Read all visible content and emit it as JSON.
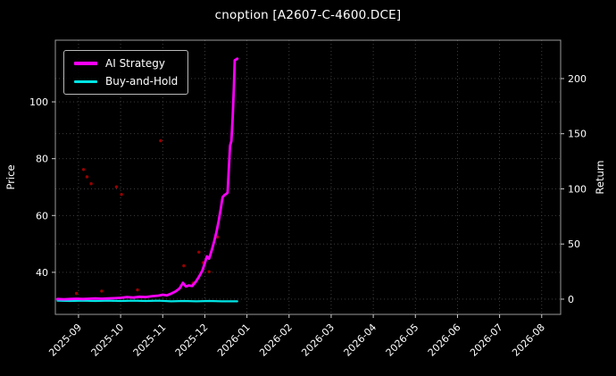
{
  "colors": {
    "background": "#000000",
    "text": "#ffffff",
    "tick": "#cccccc",
    "grid": "#454545",
    "spine": "#9a9a9a",
    "ai_strategy": "#ff00ff",
    "buy_and_hold": "#00e5e5",
    "signal_dots": "#990000"
  },
  "chart_data": {
    "type": "line",
    "title": "cnoption [A2607-C-4600.DCE]",
    "ylabel_left": "Price",
    "ylabel_right": "Return",
    "legend": [
      "AI Strategy",
      "Buy-and-Hold"
    ],
    "legend_position": "upper-left",
    "grid": true,
    "x_units": "months-since-2025-08 (1 = 2025-09)",
    "xlim": [
      0.45,
      12.45
    ],
    "x_tick_positions": [
      1,
      2,
      3,
      4,
      5,
      6,
      7,
      8,
      9,
      10,
      11,
      12
    ],
    "x_tick_labels": [
      "2025-09",
      "2025-10",
      "2025-11",
      "2025-12",
      "2026-01",
      "2026-02",
      "2026-03",
      "2026-04",
      "2026-05",
      "2026-06",
      "2026-07",
      "2026-08"
    ],
    "ylim_left": [
      25.2,
      121.7
    ],
    "yticks_left": [
      40,
      60,
      80,
      100
    ],
    "ylim_right": [
      -13.8,
      234.8
    ],
    "yticks_right": [
      0,
      50,
      100,
      150,
      200
    ],
    "series": [
      {
        "id": "ai-strategy",
        "name": "AI Strategy",
        "type": "line",
        "axis": "left",
        "color_key": "ai_strategy",
        "width": 2.8,
        "points": [
          [
            0.5,
            30.6
          ],
          [
            0.65,
            30.5
          ],
          [
            0.8,
            30.6
          ],
          [
            0.95,
            30.7
          ],
          [
            1.1,
            30.6
          ],
          [
            1.25,
            30.7
          ],
          [
            1.4,
            30.8
          ],
          [
            1.55,
            30.7
          ],
          [
            1.7,
            30.8
          ],
          [
            1.85,
            30.9
          ],
          [
            2.0,
            31.0
          ],
          [
            2.15,
            31.3
          ],
          [
            2.3,
            31.1
          ],
          [
            2.45,
            31.4
          ],
          [
            2.6,
            31.3
          ],
          [
            2.75,
            31.6
          ],
          [
            2.9,
            31.8
          ],
          [
            3.0,
            32.1
          ],
          [
            3.1,
            31.9
          ],
          [
            3.2,
            32.5
          ],
          [
            3.3,
            33.2
          ],
          [
            3.4,
            34.3
          ],
          [
            3.48,
            36.3
          ],
          [
            3.55,
            35.0
          ],
          [
            3.62,
            35.4
          ],
          [
            3.7,
            35.2
          ],
          [
            3.78,
            36.6
          ],
          [
            3.86,
            38.4
          ],
          [
            3.94,
            40.6
          ],
          [
            4.0,
            43.2
          ],
          [
            4.05,
            45.6
          ],
          [
            4.1,
            44.8
          ],
          [
            4.16,
            47.6
          ],
          [
            4.22,
            50.8
          ],
          [
            4.28,
            54.4
          ],
          [
            4.33,
            58.2
          ],
          [
            4.38,
            62.6
          ],
          [
            4.42,
            66.4
          ],
          [
            4.46,
            67.1
          ],
          [
            4.5,
            67.5
          ],
          [
            4.54,
            68.0
          ],
          [
            4.57,
            76.5
          ],
          [
            4.6,
            84.6
          ],
          [
            4.63,
            86.2
          ],
          [
            4.66,
            94.5
          ],
          [
            4.69,
            105.5
          ],
          [
            4.71,
            114.6
          ],
          [
            4.77,
            115.2
          ]
        ]
      },
      {
        "id": "buy-and-hold",
        "name": "Buy-and-Hold",
        "type": "line",
        "axis": "left",
        "color_key": "buy_and_hold",
        "width": 2.2,
        "points": [
          [
            0.5,
            30.0
          ],
          [
            0.8,
            29.9
          ],
          [
            1.1,
            30.0
          ],
          [
            1.4,
            29.9
          ],
          [
            1.7,
            30.0
          ],
          [
            2.0,
            29.9
          ],
          [
            2.3,
            30.0
          ],
          [
            2.6,
            29.9
          ],
          [
            2.9,
            30.0
          ],
          [
            3.2,
            29.8
          ],
          [
            3.5,
            29.9
          ],
          [
            3.8,
            29.8
          ],
          [
            4.1,
            29.9
          ],
          [
            4.4,
            29.8
          ],
          [
            4.77,
            29.8
          ]
        ]
      },
      {
        "id": "signals",
        "name": "signal-dots",
        "type": "scatter",
        "axis": "left",
        "color_key": "signal_dots",
        "points": [
          [
            0.95,
            32.6
          ],
          [
            1.12,
            76.2
          ],
          [
            1.2,
            73.6
          ],
          [
            1.3,
            71.2
          ],
          [
            1.55,
            33.4
          ],
          [
            1.9,
            70.1
          ],
          [
            2.02,
            67.4
          ],
          [
            2.4,
            33.8
          ],
          [
            2.95,
            86.3
          ],
          [
            3.5,
            42.3
          ],
          [
            3.72,
            36.2
          ],
          [
            3.86,
            47.1
          ],
          [
            3.96,
            43.4
          ],
          [
            4.1,
            40.2
          ],
          [
            4.3,
            52.4
          ]
        ]
      }
    ]
  }
}
